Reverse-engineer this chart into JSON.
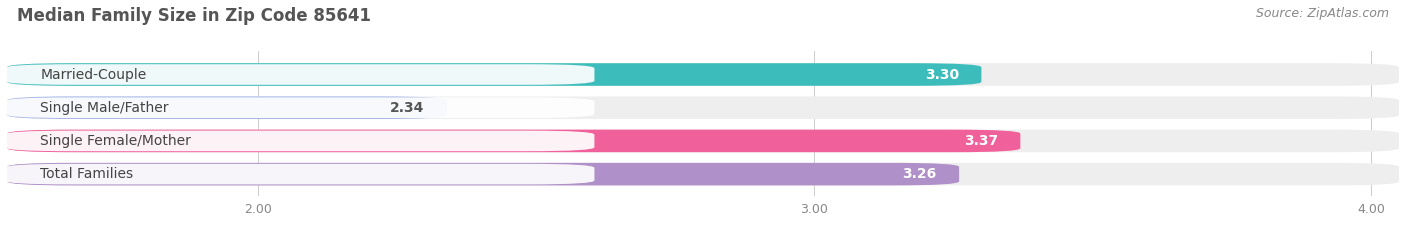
{
  "title": "Median Family Size in Zip Code 85641",
  "source": "Source: ZipAtlas.com",
  "categories": [
    "Married-Couple",
    "Single Male/Father",
    "Single Female/Mother",
    "Total Families"
  ],
  "values": [
    3.3,
    2.34,
    3.37,
    3.26
  ],
  "bar_colors": [
    "#3dbcbc",
    "#a8b8e8",
    "#f0609a",
    "#b090c8"
  ],
  "bar_bg_color": "#eeeeee",
  "value_label_colors": [
    "#ffffff",
    "#555555",
    "#ffffff",
    "#ffffff"
  ],
  "xlim_min": 1.55,
  "xlim_max": 4.05,
  "xticks": [
    2.0,
    3.0,
    4.0
  ],
  "xtick_labels": [
    "2.00",
    "3.00",
    "4.00"
  ],
  "background_color": "#ffffff",
  "title_fontsize": 12,
  "bar_label_fontsize": 10,
  "category_fontsize": 10,
  "source_fontsize": 9,
  "value_inside_bar": [
    true,
    false,
    true,
    true
  ]
}
